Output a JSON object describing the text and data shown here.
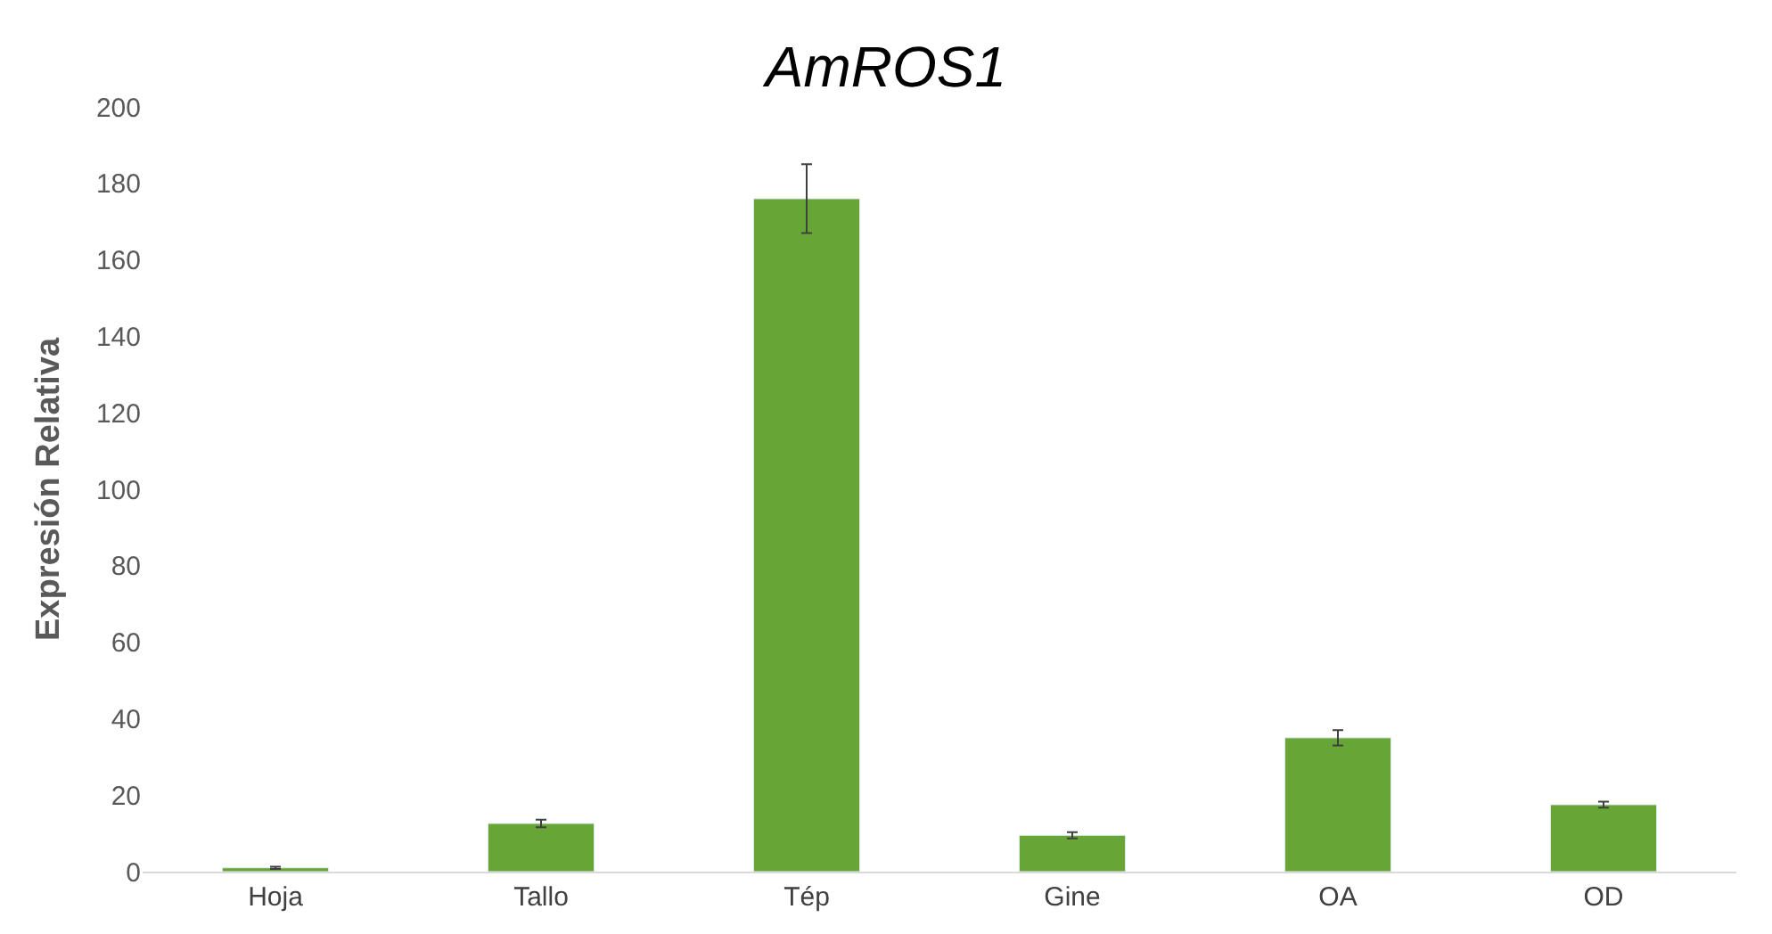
{
  "chart_data": {
    "type": "bar",
    "title": "AmROS1",
    "ylabel": "Expresión Relativa",
    "categories": [
      "Hoja",
      "Tallo",
      "Tép",
      "Gine",
      "OA",
      "OD"
    ],
    "values": [
      1,
      12.6,
      176,
      9.5,
      35,
      17.5
    ],
    "errors": [
      0.3,
      1,
      9,
      0.8,
      2,
      0.8
    ],
    "color": "#66a536",
    "ylim": [
      0,
      200
    ],
    "yticks": [
      0,
      20,
      40,
      60,
      80,
      100,
      120,
      140,
      160,
      180,
      200
    ],
    "legend": false
  }
}
